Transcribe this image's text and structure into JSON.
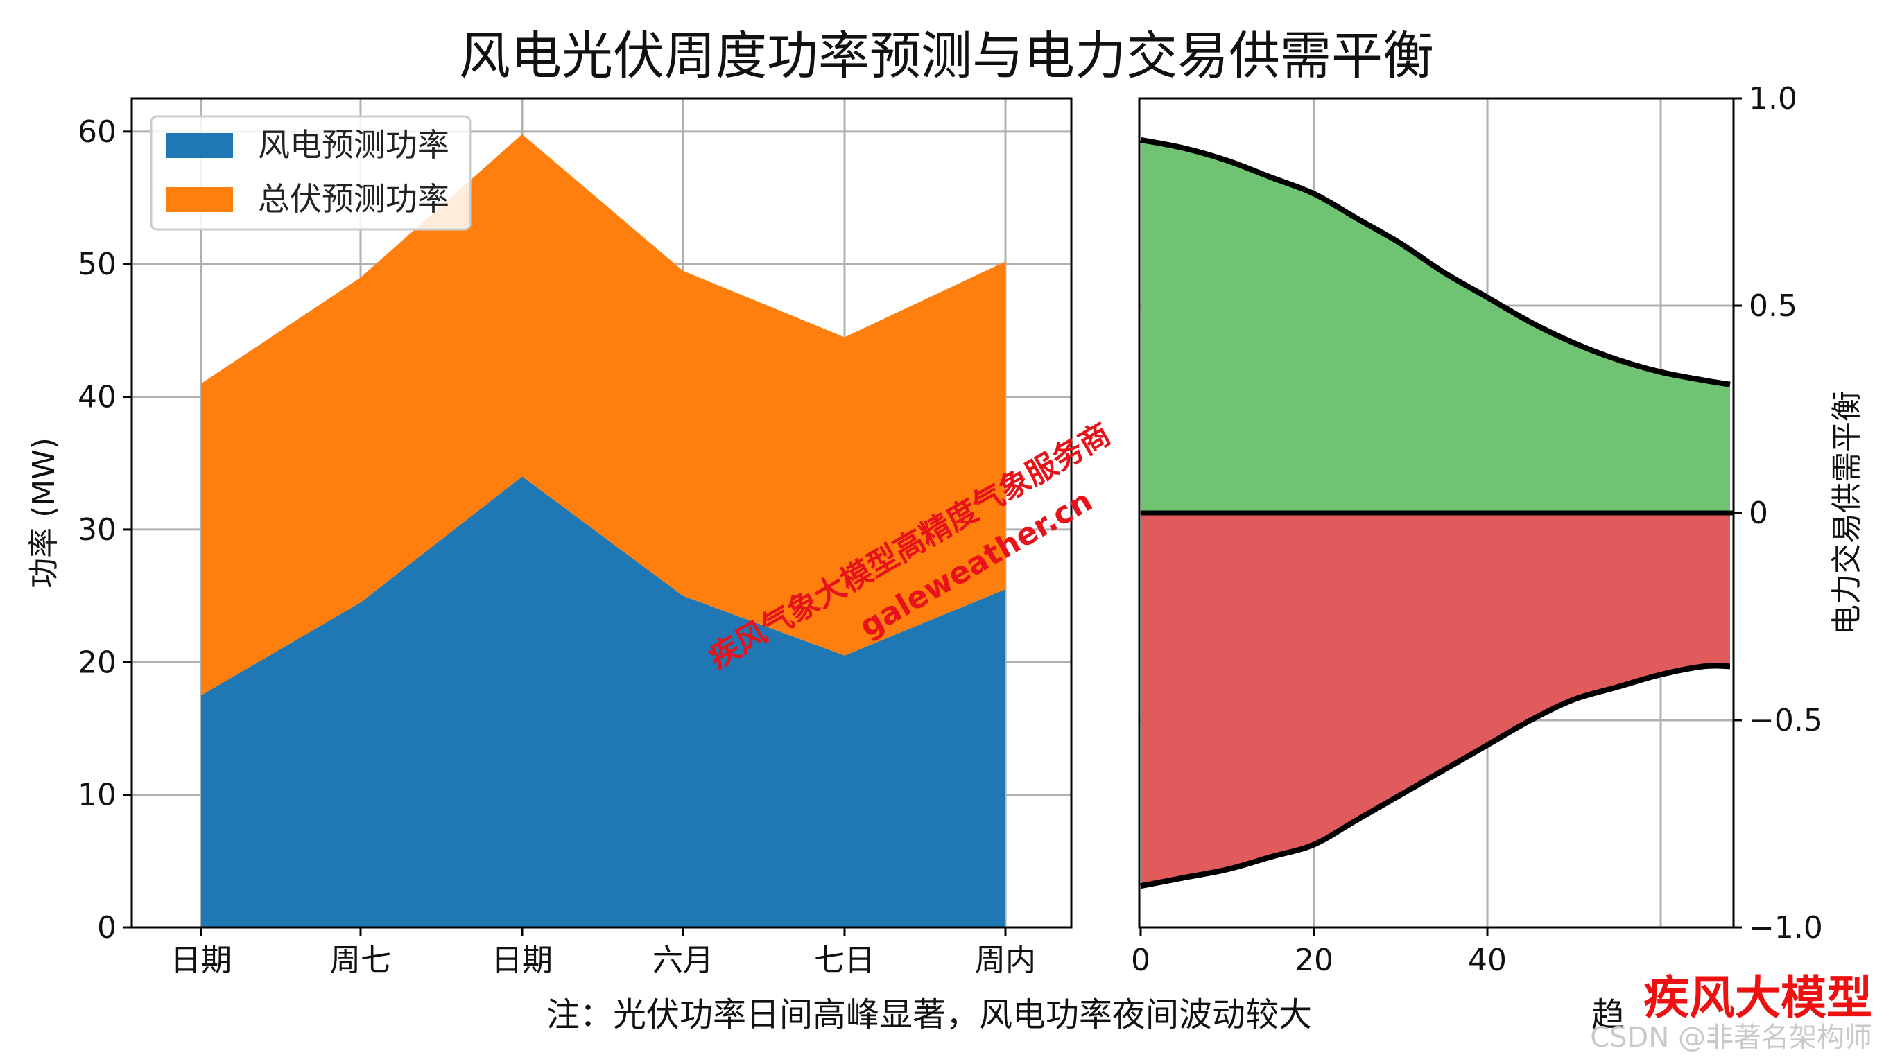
{
  "title": "风电光伏周度功率预测与电力交易供需平衡",
  "note": "注：光伏功率日间高峰显著，风电功率夜间波动较大",
  "watermark": {
    "line1": "疾风气象大模型高精度气象服务商",
    "line2": "galeweather.cn"
  },
  "brand": "疾风大模型",
  "csdn_credit": "CSDN @非著名架构师",
  "cropped_xlabel_fragment": "趋",
  "chart_data": [
    {
      "type": "area",
      "stacked": true,
      "categories": [
        "日期",
        "周七",
        "日期",
        "六月",
        "七日",
        "周内"
      ],
      "series": [
        {
          "name": "风电预测功率",
          "values": [
            17.5,
            24.5,
            34.0,
            25.0,
            20.5,
            25.5
          ],
          "color": "#1f77b4"
        },
        {
          "name": "总伏预测功率",
          "values": [
            23.5,
            24.5,
            25.8,
            24.5,
            24.0,
            24.7
          ],
          "color": "#ff7f0e"
        }
      ],
      "ylabel": "功率 (MW)",
      "ylim": [
        0,
        62.5
      ],
      "yticks": [
        "0",
        "10",
        "20",
        "30",
        "40",
        "50",
        "60"
      ],
      "grid": true,
      "legend": "top-left"
    },
    {
      "type": "area",
      "x": [
        0,
        5,
        10,
        15,
        20,
        25,
        30,
        35,
        40,
        45,
        50,
        55,
        60,
        65,
        68
      ],
      "upper": [
        0.9,
        0.88,
        0.85,
        0.81,
        0.77,
        0.71,
        0.65,
        0.58,
        0.52,
        0.46,
        0.41,
        0.37,
        0.34,
        0.32,
        0.31
      ],
      "lower": [
        -0.9,
        -0.88,
        -0.86,
        -0.83,
        -0.8,
        -0.74,
        -0.68,
        -0.62,
        -0.56,
        -0.5,
        -0.45,
        -0.42,
        -0.39,
        -0.37,
        -0.37
      ],
      "colors": {
        "positive": "#6fc373",
        "negative": "#e05c5c",
        "line": "#000000"
      },
      "xlim": [
        0,
        68
      ],
      "ylim": [
        -1.0,
        1.0
      ],
      "xticks": [
        "0",
        "20",
        "40"
      ],
      "yticks": [
        "1.0",
        "0.5",
        "0",
        "−0.5",
        "−1.0"
      ],
      "ylabel": "电力交易供需平衡",
      "yaxis_side": "right",
      "grid": true
    }
  ]
}
